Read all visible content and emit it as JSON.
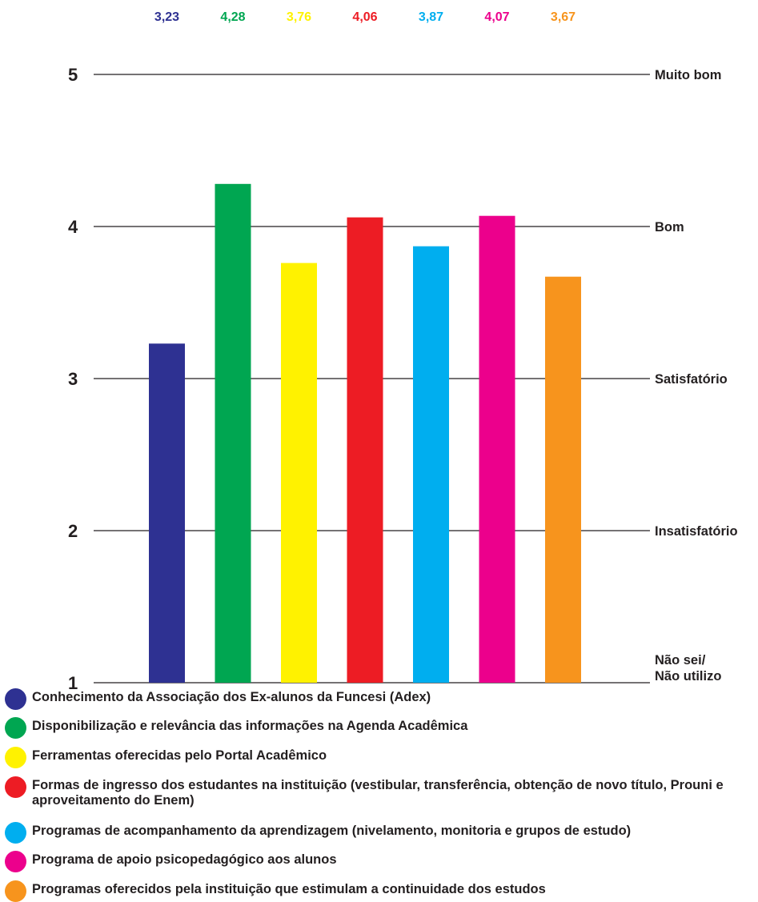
{
  "chart_data": {
    "type": "bar",
    "categories": [
      "Conhecimento da Associação dos Ex-alunos da Funcesi (Adex)",
      "Disponibilização e relevância das informações na Agenda Acadêmica",
      "Ferramentas oferecidas pelo Portal Acadêmico",
      "Formas de ingresso dos estudantes na instituição (vestibular, transferência, obtenção de novo título, Prouni e aproveitamento do Enem)",
      "Programas de acompanhamento da aprendizagem (nivelamento, monitoria e grupos de estudo)",
      "Programa de apoio psicopedagógico aos alunos",
      "Programas oferecidos pela instituição que estimulam a continuidade dos estudos"
    ],
    "values": [
      3.23,
      4.28,
      3.76,
      4.06,
      3.87,
      4.07,
      3.67
    ],
    "value_labels": [
      "3,23",
      "4,28",
      "3,76",
      "4,06",
      "3,87",
      "4,07",
      "3,67"
    ],
    "colors": [
      "#2e3192",
      "#00a651",
      "#fff200",
      "#ed1c24",
      "#00aeef",
      "#ec008c",
      "#f7941d"
    ],
    "ylim": [
      1,
      5
    ],
    "yticks": [
      "1",
      "2",
      "3",
      "4",
      "5"
    ],
    "right_labels": [
      "Não sei/\nNão utilizo",
      "Insatisfatório",
      "Satisfatório",
      "Bom",
      "Muito bom"
    ],
    "grid": true,
    "legend_position": "bottom"
  }
}
